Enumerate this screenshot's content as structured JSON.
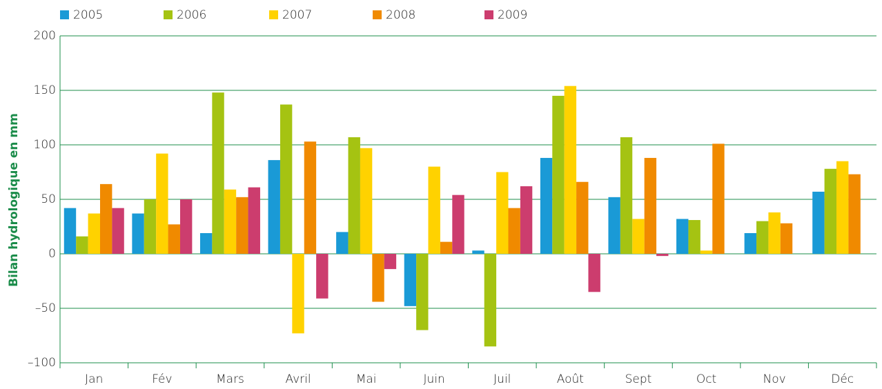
{
  "chart_data": {
    "type": "bar",
    "y_label": "Bilan hydrologique en mm",
    "categories": [
      "Jan",
      "Fév",
      "Mars",
      "Avril",
      "Mai",
      "Juin",
      "Juil",
      "Août",
      "Sept",
      "Oct",
      "Nov",
      "Déc"
    ],
    "series": [
      {
        "name": "2005",
        "color": "#1a9ad6",
        "values": [
          42,
          37,
          19,
          86,
          20,
          -48,
          3,
          88,
          52,
          32,
          19,
          57
        ]
      },
      {
        "name": "2006",
        "color": "#a5c312",
        "values": [
          16,
          50,
          148,
          137,
          107,
          -70,
          -85,
          145,
          107,
          31,
          30,
          78
        ]
      },
      {
        "name": "2007",
        "color": "#ffd200",
        "values": [
          37,
          92,
          59,
          -73,
          97,
          80,
          75,
          154,
          32,
          3,
          38,
          85
        ]
      },
      {
        "name": "2008",
        "color": "#f08a00",
        "values": [
          64,
          27,
          52,
          103,
          -44,
          11,
          42,
          66,
          88,
          101,
          28,
          73
        ]
      },
      {
        "name": "2009",
        "color": "#cc3d6e",
        "values": [
          42,
          50,
          61,
          -41,
          -14,
          54,
          62,
          -35,
          -2,
          null,
          null,
          null
        ]
      }
    ],
    "ylim": [
      -100,
      200
    ],
    "yticks": [
      {
        "value": -100,
        "label": "–100"
      },
      {
        "value": -50,
        "label": "–50"
      },
      0,
      50,
      100,
      150,
      200
    ],
    "grid": true
  }
}
